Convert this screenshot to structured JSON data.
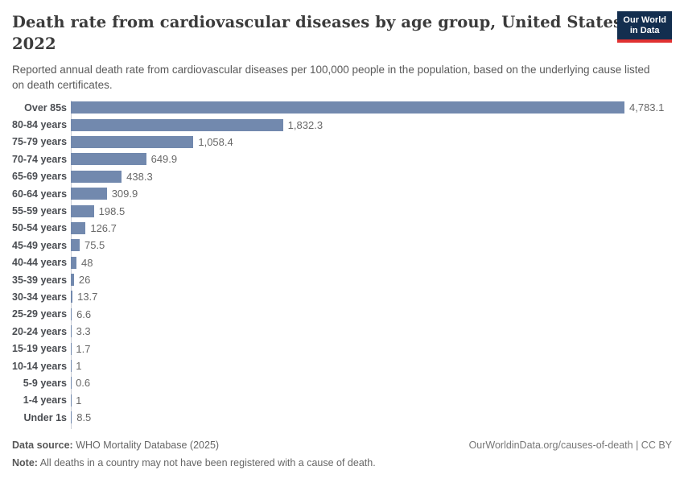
{
  "header": {
    "title": "Death rate from cardiovascular diseases by age group, United States, 2022",
    "title_line1": "Death rate from cardiovascular diseases by age group, United States,",
    "title_line2": "2022",
    "subtitle": "Reported annual death rate from cardiovascular diseases per 100,000 people in the population, based on the underlying cause listed on death certificates.",
    "logo": {
      "line1": "Our World",
      "line2": "in Data",
      "bg_color": "#132e4f",
      "accent_color": "#e03131"
    }
  },
  "chart_data": {
    "type": "bar",
    "orientation": "horizontal",
    "title": "Death rate from cardiovascular diseases by age group, United States, 2022",
    "xlabel": "",
    "ylabel": "",
    "xlim": [
      0,
      4783.1
    ],
    "grid": false,
    "legend": "none",
    "bar_color": "#7289ae",
    "categories": [
      "Over 85s",
      "80-84 years",
      "75-79 years",
      "70-74 years",
      "65-69 years",
      "60-64 years",
      "55-59 years",
      "50-54 years",
      "45-49 years",
      "40-44 years",
      "35-39 years",
      "30-34 years",
      "25-29 years",
      "20-24 years",
      "15-19 years",
      "10-14 years",
      "5-9 years",
      "1-4 years",
      "Under 1s"
    ],
    "values": [
      4783.1,
      1832.3,
      1058.4,
      649.9,
      438.3,
      309.9,
      198.5,
      126.7,
      75.5,
      48,
      26,
      13.7,
      6.6,
      3.3,
      1.7,
      1,
      0.6,
      1,
      8.5
    ],
    "value_labels": [
      "4,783.1",
      "1,832.3",
      "1,058.4",
      "649.9",
      "438.3",
      "309.9",
      "198.5",
      "126.7",
      "75.5",
      "48",
      "26",
      "13.7",
      "6.6",
      "3.3",
      "1.7",
      "1",
      "0.6",
      "1",
      "8.5"
    ]
  },
  "footer": {
    "source_label": "Data source:",
    "source_text": "WHO Mortality Database (2025)",
    "note_label": "Note:",
    "note_text": "All deaths in a country may not have been registered with a cause of death.",
    "credit": "OurWorldinData.org/causes-of-death | CC BY"
  }
}
